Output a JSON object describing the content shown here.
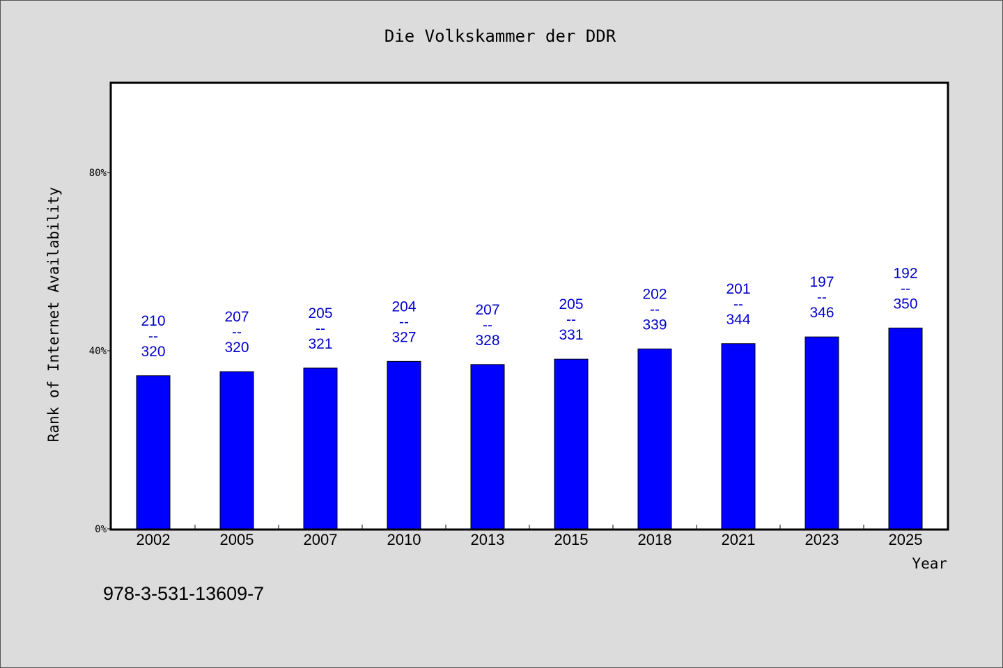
{
  "chart_data": {
    "type": "bar",
    "title": "Die Volkskammer der DDR",
    "xlabel": "Year",
    "ylabel": "Rank of Internet Availability",
    "categories": [
      "2002",
      "2005",
      "2007",
      "2010",
      "2013",
      "2015",
      "2018",
      "2021",
      "2023",
      "2025"
    ],
    "values": [
      34.4,
      35.3,
      36.1,
      37.6,
      36.9,
      38.1,
      40.4,
      41.6,
      43.1,
      45.1
    ],
    "bar_labels": [
      {
        "rank": "210",
        "sep": "--",
        "total": "320"
      },
      {
        "rank": "207",
        "sep": "--",
        "total": "320"
      },
      {
        "rank": "205",
        "sep": "--",
        "total": "321"
      },
      {
        "rank": "204",
        "sep": "--",
        "total": "327"
      },
      {
        "rank": "207",
        "sep": "--",
        "total": "328"
      },
      {
        "rank": "205",
        "sep": "--",
        "total": "331"
      },
      {
        "rank": "202",
        "sep": "--",
        "total": "339"
      },
      {
        "rank": "201",
        "sep": "--",
        "total": "344"
      },
      {
        "rank": "197",
        "sep": "--",
        "total": "346"
      },
      {
        "rank": "192",
        "sep": "--",
        "total": "350"
      }
    ],
    "ylim": [
      0,
      100
    ],
    "yticks": [
      0,
      40,
      80
    ],
    "ytick_labels": [
      "0%",
      "40%",
      "80%"
    ],
    "grid": false,
    "legend": "none",
    "colors": {
      "bar": "#0000ff",
      "bar_label": "#0000cc",
      "background": "#dcdcdc",
      "plot_background": "#ffffff"
    }
  },
  "footer_text": "978-3-531-13609-7"
}
